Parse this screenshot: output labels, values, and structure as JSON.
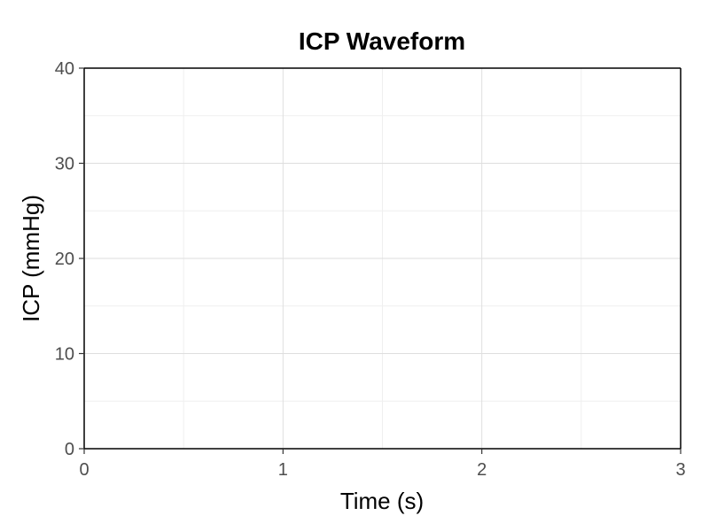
{
  "chart_data": {
    "type": "line",
    "title": "ICP Waveform",
    "xlabel": "Time (s)",
    "ylabel": "ICP (mmHg)",
    "xlim": [
      0,
      3
    ],
    "ylim": [
      0,
      40
    ],
    "x_ticks": [
      0,
      1,
      2,
      3
    ],
    "y_ticks": [
      0,
      10,
      20,
      30,
      40
    ],
    "grid": true,
    "series": []
  }
}
